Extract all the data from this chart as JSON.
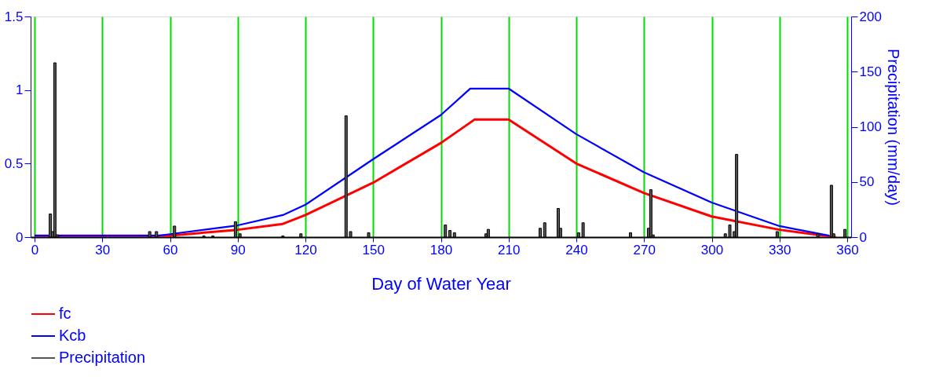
{
  "chart_data": {
    "type": "line",
    "xlabel": "Day of Water Year",
    "y2label": "Precipitation (mm/day)",
    "xlim": [
      0,
      360
    ],
    "xticks": [
      0,
      30,
      60,
      90,
      120,
      150,
      180,
      210,
      240,
      270,
      300,
      330,
      360
    ],
    "ylim": [
      0,
      1.5
    ],
    "yticks": [
      0,
      0.5,
      1,
      1.5
    ],
    "y2lim": [
      0,
      200
    ],
    "y2ticks": [
      0,
      50,
      100,
      150,
      200
    ],
    "grid": "x",
    "legend": "bottom left",
    "series": [
      {
        "name": "fc",
        "color": "#ff0000",
        "x": [
          0,
          55,
          60,
          90,
          110,
          120,
          150,
          180,
          195,
          210,
          240,
          270,
          300,
          330,
          355
        ],
        "values": [
          0.01,
          0.01,
          0.01,
          0.05,
          0.09,
          0.15,
          0.37,
          0.64,
          0.8,
          0.8,
          0.5,
          0.3,
          0.14,
          0.05,
          0.0
        ]
      },
      {
        "name": "Kcb",
        "color": "#0000ff",
        "x": [
          0,
          55,
          60,
          90,
          110,
          120,
          150,
          180,
          193,
          210,
          240,
          270,
          300,
          330,
          352
        ],
        "values": [
          0.01,
          0.01,
          0.02,
          0.08,
          0.15,
          0.22,
          0.53,
          0.83,
          1.01,
          1.01,
          0.7,
          0.44,
          0.235,
          0.075,
          0.01
        ]
      },
      {
        "name": "Precipitation",
        "type": "bar",
        "axis": "y2",
        "color": "#555555",
        "x": [
          7,
          8,
          9,
          10,
          51,
          54,
          62,
          75,
          79,
          89,
          91,
          110,
          118,
          138,
          140,
          148,
          182,
          184,
          186,
          200,
          201,
          224,
          226,
          232,
          233,
          241,
          243,
          264,
          272,
          273,
          274,
          306,
          308,
          310,
          311,
          329,
          347,
          353,
          354,
          359
        ],
        "values": [
          21,
          5,
          158,
          2,
          5,
          5,
          10,
          1,
          1,
          14,
          3,
          1,
          3,
          110,
          5,
          4,
          11,
          6,
          4,
          3,
          7,
          8,
          13,
          26,
          8,
          4,
          13,
          4,
          8,
          43,
          2,
          3,
          11,
          5,
          75,
          5,
          3,
          47,
          3,
          7
        ]
      }
    ]
  }
}
